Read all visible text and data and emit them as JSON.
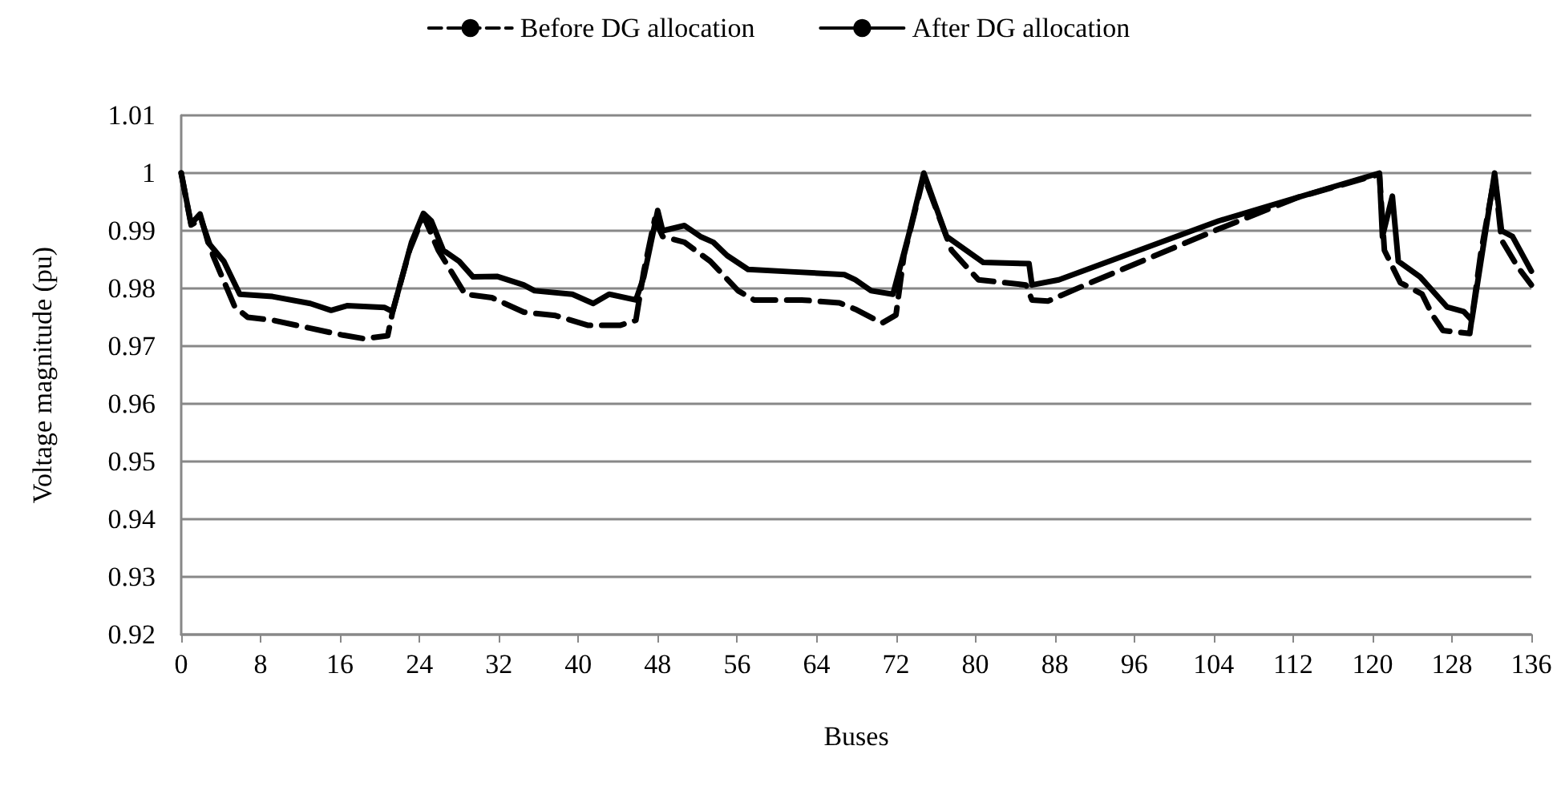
{
  "chart_data": {
    "type": "line",
    "xlabel": "Buses",
    "ylabel": "Voltage magnitude (pu)",
    "xlim": [
      0,
      136
    ],
    "xticks": [
      0,
      8,
      16,
      24,
      32,
      40,
      48,
      56,
      64,
      72,
      80,
      88,
      96,
      104,
      112,
      120,
      128,
      136
    ],
    "ylim": [
      0.92,
      1.01
    ],
    "yticks": [
      0.92,
      0.93,
      0.94,
      0.95,
      0.96,
      0.97,
      0.98,
      0.99,
      1,
      1.01
    ],
    "grid": "y",
    "legend": "top",
    "marker": "none",
    "series": [
      {
        "name": "Before DG allocation",
        "color": "#000000",
        "line_style": "dashed",
        "x": [
          0,
          1,
          2,
          3,
          3.2,
          5.4,
          6.7,
          9.2,
          13,
          16.3,
          18.4,
          20.8,
          21.3,
          23,
          24.4,
          25.9,
          28.6,
          31.3,
          34.5,
          37.7,
          41,
          44.2,
          45.8,
          46.6,
          47.7,
          48.5,
          50.7,
          53.3,
          56.1,
          57.7,
          62.5,
          66.3,
          67.9,
          70.6,
          72,
          72.8,
          74.8,
          77.6,
          80.3,
          85.1,
          85.7,
          87.3,
          91.6,
          104.5,
          112.5,
          120.7,
          121.2,
          122.8,
          125,
          126,
          127.1,
          129.8,
          130.9,
          132.3,
          133,
          134.6,
          136
        ],
        "values": [
          1,
          0.991,
          0.992,
          0.987,
          0.9857,
          0.9768,
          0.975,
          0.9745,
          0.9731,
          0.9719,
          0.9713,
          0.9718,
          0.976,
          0.9866,
          0.9926,
          0.9866,
          0.979,
          0.9784,
          0.9759,
          0.9753,
          0.9736,
          0.9736,
          0.9745,
          0.983,
          0.992,
          0.989,
          0.988,
          0.9847,
          0.9796,
          0.978,
          0.978,
          0.9775,
          0.9764,
          0.974,
          0.9754,
          0.9857,
          0.9995,
          0.9866,
          0.9815,
          0.9806,
          0.978,
          0.9778,
          0.981,
          0.9903,
          0.9958,
          0.9998,
          0.9866,
          0.981,
          0.979,
          0.9755,
          0.9727,
          0.9722,
          0.986,
          0.9995,
          0.9884,
          0.9838,
          0.9806
        ]
      },
      {
        "name": "After DG allocation",
        "color": "#000000",
        "line_style": "solid",
        "x": [
          0,
          1,
          1.9,
          2.7,
          4.3,
          5.9,
          9.2,
          13,
          15.1,
          16.7,
          20.5,
          21.3,
          23.2,
          24.4,
          25.2,
          26.4,
          28,
          29.4,
          31.8,
          34.5,
          35.6,
          39.4,
          41.5,
          43.1,
          45.8,
          46.6,
          48,
          48.5,
          50.7,
          52.3,
          53.6,
          55,
          57.1,
          61.4,
          66.8,
          67.9,
          69.5,
          71.7,
          73.3,
          74.8,
          77.1,
          80.8,
          85.4,
          85.7,
          88.4,
          104.5,
          120.7,
          121,
          122,
          122.6,
          124.8,
          127.5,
          129.2,
          130,
          132.3,
          133,
          134.1,
          136
        ],
        "values": [
          1,
          0.9912,
          0.9929,
          0.988,
          0.9847,
          0.979,
          0.9786,
          0.9774,
          0.9762,
          0.977,
          0.9767,
          0.976,
          0.988,
          0.993,
          0.9917,
          0.9866,
          0.9847,
          0.982,
          0.9821,
          0.9806,
          0.9796,
          0.979,
          0.9774,
          0.979,
          0.978,
          0.982,
          0.9935,
          0.99,
          0.9909,
          0.989,
          0.988,
          0.9857,
          0.9833,
          0.9829,
          0.9824,
          0.9815,
          0.9796,
          0.979,
          0.9894,
          1,
          0.989,
          0.9845,
          0.9843,
          0.9806,
          0.9815,
          0.9917,
          1,
          0.989,
          0.996,
          0.9847,
          0.982,
          0.9768,
          0.976,
          0.9745,
          1,
          0.99,
          0.989,
          0.983
        ]
      }
    ]
  }
}
